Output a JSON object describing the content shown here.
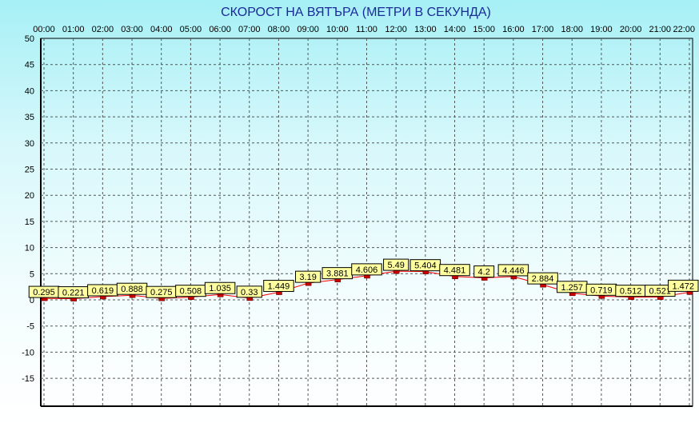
{
  "chart_data": {
    "type": "line",
    "title": "СКОРОСТ НА ВЯТЪРА (МЕТРИ В СЕКУНДА)",
    "xlabel": "",
    "ylabel": "",
    "categories": [
      "00:00",
      "01:00",
      "02:00",
      "03:00",
      "04:00",
      "05:00",
      "06:00",
      "07:00",
      "08:00",
      "09:00",
      "10:00",
      "11:00",
      "12:00",
      "13:00",
      "14:00",
      "15:00",
      "16:00",
      "17:00",
      "18:00",
      "19:00",
      "20:00",
      "21:00",
      "22:00"
    ],
    "value_labels": [
      "0.295",
      "0.221",
      "0.619",
      "0.888",
      "0.275",
      "0.508",
      "1.035",
      "0.33",
      "1.449",
      "3.19",
      "3.881",
      "4.606",
      "5.49",
      "5.404",
      "4.481",
      "4.2",
      "4.446",
      "2.884",
      "1.257",
      "0.719",
      "0.512",
      "0.521",
      "1.472"
    ],
    "series": [
      {
        "values": [
          0.295,
          0.221,
          0.619,
          0.888,
          0.275,
          0.508,
          1.035,
          0.33,
          1.449,
          3.19,
          3.881,
          4.606,
          5.49,
          5.404,
          4.481,
          4.2,
          4.446,
          2.884,
          1.257,
          0.719,
          0.512,
          0.521,
          1.472
        ]
      }
    ],
    "yticks": [
      "50",
      "45",
      "40",
      "35",
      "30",
      "25",
      "20",
      "15",
      "10",
      "5",
      "0",
      "-5",
      "-10",
      "-15"
    ],
    "ylim": [
      -20,
      50
    ],
    "grid": true,
    "legend": "none",
    "colors": {
      "line": "#ff0000",
      "marker_fill": "#cc0000",
      "label_fill": "#ffffa0",
      "grid": "#555555",
      "title": "#1a2a9a"
    }
  }
}
